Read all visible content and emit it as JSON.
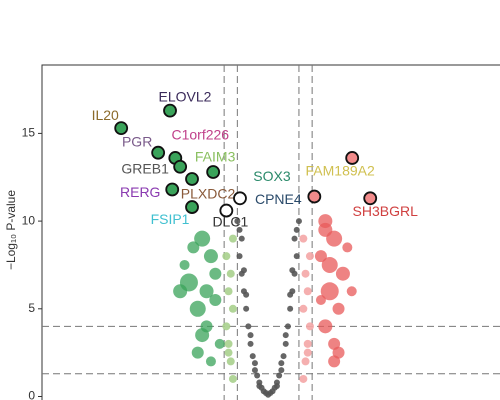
{
  "chart_data": {
    "type": "volcano",
    "y_label": "−Log₁₀ P-value",
    "ylim": [
      -0.2,
      18.9
    ],
    "yticks": [
      0,
      5,
      10,
      15
    ],
    "xlim": [
      -5.14,
      5.27
    ],
    "vlines": [
      -1,
      -0.7,
      0.7,
      1
    ],
    "hlines": [
      4,
      1.3
    ],
    "series": [
      {
        "color": "#555555",
        "size": 3,
        "x": [
          0,
          -0.1,
          0.1,
          -0.2,
          0.2,
          -0.3,
          0.3,
          -0.15,
          0.15,
          -0.35,
          0.35,
          -0.4,
          0.4,
          -0.25,
          0.25,
          -0.45,
          0.45,
          -0.5,
          0.5,
          -0.3,
          0.3,
          -0.55,
          0.55,
          -0.6,
          0.6,
          -0.4,
          0.4,
          -0.65,
          0.65,
          -0.5,
          0.5,
          -0.6,
          0.6,
          -0.2,
          0.2,
          0.05,
          -0.05,
          -0.7,
          0.7,
          -0.55,
          0.55,
          -0.65,
          0.65
        ],
        "y": [
          0.1,
          0.3,
          0.3,
          0.8,
          0.8,
          1.5,
          1.5,
          0.5,
          0.5,
          2.3,
          2.3,
          3,
          3,
          1.2,
          1.2,
          4,
          4,
          5,
          5,
          1.9,
          1.9,
          6,
          6,
          7,
          7,
          3.5,
          3.5,
          8,
          8,
          5.8,
          5.8,
          9,
          9,
          0.6,
          0.6,
          0.2,
          0.2,
          10,
          10,
          7.2,
          7.2,
          9.5,
          9.5
        ]
      },
      {
        "color": "#a8d08d",
        "size": 4,
        "x": [
          -0.8,
          -0.85,
          -0.9,
          -0.95,
          -0.8,
          -0.9,
          -0.85,
          -0.95,
          -0.8,
          -0.9
        ],
        "y": [
          1,
          2,
          3,
          4,
          5,
          6,
          7,
          8,
          9,
          2.5
        ]
      },
      {
        "color": "#f4a6a6",
        "size": 4,
        "x": [
          0.8,
          0.85,
          0.9,
          0.95,
          0.8,
          0.9,
          0.85,
          0.95,
          0.8,
          0.9
        ],
        "y": [
          1,
          2,
          3,
          4,
          5,
          6,
          7,
          8,
          9,
          2.5
        ]
      },
      {
        "color": "#3aa35a",
        "x": [
          -1.5,
          -1.3,
          -1.8,
          -1.2,
          -1.6,
          -1.4,
          -2.0,
          -1.1,
          -1.7,
          -1.3,
          -1.5,
          -1.2,
          -1.9,
          -1.4,
          -1.6
        ],
        "y": [
          9,
          8,
          6.5,
          7,
          5,
          4,
          6,
          3,
          8.5,
          2,
          3.5,
          5.5,
          7.5,
          6,
          2.5
        ],
        "sizes": [
          8,
          7,
          9,
          6,
          8,
          6,
          7,
          5,
          6,
          5,
          7,
          6,
          5,
          7,
          6
        ]
      },
      {
        "color": "#e85a5a",
        "x": [
          1.3,
          1.5,
          1.2,
          1.7,
          1.4,
          1.6,
          1.3,
          1.8,
          1.5,
          1.2,
          1.4,
          1.6,
          1.3,
          1.9,
          1.5
        ],
        "y": [
          10,
          9,
          8,
          7,
          6,
          5,
          4,
          8.5,
          3,
          5.5,
          7.5,
          2.5,
          9.5,
          6,
          2
        ],
        "sizes": [
          7,
          8,
          6,
          7,
          9,
          6,
          7,
          5,
          6,
          5,
          8,
          6,
          7,
          5,
          6
        ]
      }
    ],
    "genes": [
      {
        "text": "IL20",
        "x": -3.34,
        "y": 15.3,
        "fill": "#3aa35a",
        "color": "#8b6a2a"
      },
      {
        "text": "ELOVL2",
        "x": -2.23,
        "y": 16.3,
        "fill": "#3aa35a",
        "color": "#3a2a5a"
      },
      {
        "text": "PGR",
        "x": -2.5,
        "y": 13.9,
        "fill": "#3aa35a",
        "color": "#7a5a8a"
      },
      {
        "text": "C1orf226",
        "x": -2.11,
        "y": 13.6,
        "fill": "#3aa35a",
        "color": "#c0408a"
      },
      {
        "text": "GREB1",
        "x": -2.0,
        "y": 13.1,
        "fill": "#3aa35a",
        "color": "#555555"
      },
      {
        "text": "FAIM3",
        "x": -1.25,
        "y": 12.8,
        "fill": "#3aa35a",
        "color": "#8ac060"
      },
      {
        "text": "RERG",
        "x": -2.18,
        "y": 11.8,
        "fill": "#3aa35a",
        "color": "#8a3ab0"
      },
      {
        "text": "PLXDC2",
        "x": -1.73,
        "y": 12.4,
        "fill": "#3aa35a",
        "color": "#8a5a3a"
      },
      {
        "text": "FSIP1",
        "x": -1.73,
        "y": 10.8,
        "fill": "#3aa35a",
        "color": "#40c0d0"
      },
      {
        "text": "DLC1",
        "x": -0.95,
        "y": 10.6,
        "fill": "#ffffff",
        "color": "#333333"
      },
      {
        "text": "SOX3",
        "x": -0.64,
        "y": 11.3,
        "fill": "#ffffff",
        "color": "#2a8a6a"
      },
      {
        "text": "CPNE4",
        "x": 1.05,
        "y": 11.4,
        "fill": "#f28b8b",
        "color": "#2a4a6a"
      },
      {
        "text": "FAM189A2",
        "x": 1.91,
        "y": 13.6,
        "fill": "#f28b8b",
        "color": "#d0c050"
      },
      {
        "text": "SH3BGRL",
        "x": 2.32,
        "y": 11.3,
        "fill": "#f28b8b",
        "color": "#d04040"
      }
    ]
  }
}
